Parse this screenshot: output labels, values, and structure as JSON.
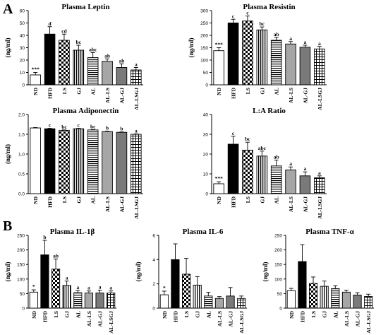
{
  "panels": {
    "a": "A",
    "b": "B"
  },
  "categories": [
    "ND",
    "HFD",
    "LS",
    "GJ",
    "AL",
    "AL-LS",
    "AL-GJ",
    "AL-LSGJ"
  ],
  "colors": {
    "ND": "#ffffff",
    "HFD": "#000000",
    "LS": "checker",
    "GJ": "vertical-stripes",
    "AL": "horizontal-stripes",
    "AL-LS": "#a6a6a6",
    "AL-GJ": "#7a7a7a",
    "AL-LSGJ": "grid"
  },
  "chart_data": [
    {
      "type": "bar",
      "title": "Plasma Leptin",
      "ylabel": "(ng/ml)",
      "ylim": [
        0,
        60
      ],
      "yticks": [
        0,
        10,
        20,
        30,
        40,
        50,
        60
      ],
      "categories": [
        "ND",
        "HFD",
        "LS",
        "GJ",
        "AL",
        "AL-LS",
        "AL-GJ",
        "AL-LSGJ"
      ],
      "values": [
        8,
        41,
        36,
        28,
        22,
        19,
        14,
        12
      ],
      "errors": [
        2,
        6,
        5,
        4,
        4,
        2,
        3,
        2
      ],
      "labels": [
        "***",
        "d",
        "cd",
        "bc",
        "abc",
        "ab",
        "ab",
        "a"
      ]
    },
    {
      "type": "bar",
      "title": "Plasma Resistin",
      "ylabel": "(ng/ml)",
      "ylim": [
        0,
        300
      ],
      "yticks": [
        0,
        50,
        100,
        150,
        200,
        250,
        300
      ],
      "categories": [
        "ND",
        "HFD",
        "LS",
        "GJ",
        "AL",
        "AL-LS",
        "AL-GJ",
        "AL-LSGJ"
      ],
      "values": [
        138,
        250,
        258,
        222,
        180,
        165,
        152,
        145
      ],
      "errors": [
        12,
        15,
        20,
        12,
        12,
        10,
        8,
        10
      ],
      "labels": [
        "***",
        "c",
        "c",
        "bc",
        "ab",
        "a",
        "a",
        "a"
      ]
    },
    {
      "type": "bar",
      "title": "Plasma Adiponectin",
      "ylabel": "(ng/ml)",
      "ylim": [
        0,
        2.0
      ],
      "yticks": [
        0.0,
        0.5,
        1.0,
        1.5,
        2.0
      ],
      "categories": [
        "ND",
        "HFD",
        "LS",
        "GJ",
        "AL",
        "AL-LS",
        "AL-GJ",
        "AL-LSGJ"
      ],
      "values": [
        1.66,
        1.64,
        1.6,
        1.64,
        1.61,
        1.57,
        1.55,
        1.5
      ],
      "errors": [
        0.01,
        0.01,
        0.01,
        0.01,
        0.01,
        0.01,
        0.01,
        0.01
      ],
      "labels": [
        "",
        "c",
        "bc",
        "c",
        "bc",
        "b",
        "b",
        "a"
      ]
    },
    {
      "type": "bar",
      "title": "L:A Ratio",
      "ylabel": "",
      "ylim": [
        0,
        40
      ],
      "yticks": [
        0,
        10,
        20,
        30,
        40
      ],
      "categories": [
        "ND",
        "HFD",
        "LS",
        "GJ",
        "AL",
        "AL-LS",
        "AL-GJ",
        "AL-LSGJ"
      ],
      "values": [
        5,
        25,
        22,
        19,
        14,
        12,
        9,
        8
      ],
      "errors": [
        1,
        4,
        4,
        2.5,
        3,
        1.5,
        2,
        1
      ],
      "labels": [
        "***",
        "c",
        "bc",
        "abc",
        "ab",
        "a",
        "a",
        "a"
      ]
    },
    {
      "type": "bar",
      "title": "Plasma IL-1β",
      "ylabel": "(ng/ml)",
      "ylim": [
        0,
        250
      ],
      "yticks": [
        0,
        50,
        100,
        150,
        200,
        250
      ],
      "categories": [
        "ND",
        "HFD",
        "LS",
        "GJ",
        "AL",
        "AL-LS",
        "AL-GJ",
        "AL-LSGJ"
      ],
      "values": [
        55,
        183,
        134,
        78,
        53,
        52,
        52,
        52
      ],
      "errors": [
        8,
        50,
        35,
        15,
        8,
        7,
        10,
        7
      ],
      "labels": [
        "*",
        "b",
        "ab",
        "a",
        "a",
        "a",
        "a",
        "a"
      ]
    },
    {
      "type": "bar",
      "title": "Plasma IL-6",
      "ylabel": "(ng/ml)",
      "ylim": [
        0,
        6
      ],
      "yticks": [
        0,
        2,
        4,
        6
      ],
      "categories": [
        "ND",
        "HFD",
        "LS",
        "GJ",
        "AL",
        "AL-LS",
        "AL-GJ",
        "AL-LSGJ"
      ],
      "values": [
        1.1,
        4.0,
        2.8,
        1.9,
        1.0,
        0.8,
        1.0,
        0.8
      ],
      "errors": [
        0.3,
        1.3,
        1.3,
        0.7,
        0.3,
        0.15,
        0.7,
        0.2
      ],
      "labels": [
        "*",
        "",
        "",
        "",
        "",
        "",
        "",
        ""
      ]
    },
    {
      "type": "bar",
      "title": "Plasma TNF-α",
      "ylabel": "(ng/ml)",
      "ylim": [
        0,
        250
      ],
      "yticks": [
        0,
        50,
        100,
        150,
        200,
        250
      ],
      "categories": [
        "ND",
        "HFD",
        "LS",
        "GJ",
        "AL",
        "AL-LS",
        "AL-GJ",
        "AL-LSGJ"
      ],
      "values": [
        60,
        160,
        85,
        75,
        67,
        55,
        45,
        40
      ],
      "errors": [
        8,
        58,
        22,
        18,
        10,
        7,
        8,
        8
      ],
      "labels": [
        "",
        "",
        "",
        "",
        "",
        "",
        "",
        ""
      ]
    }
  ]
}
